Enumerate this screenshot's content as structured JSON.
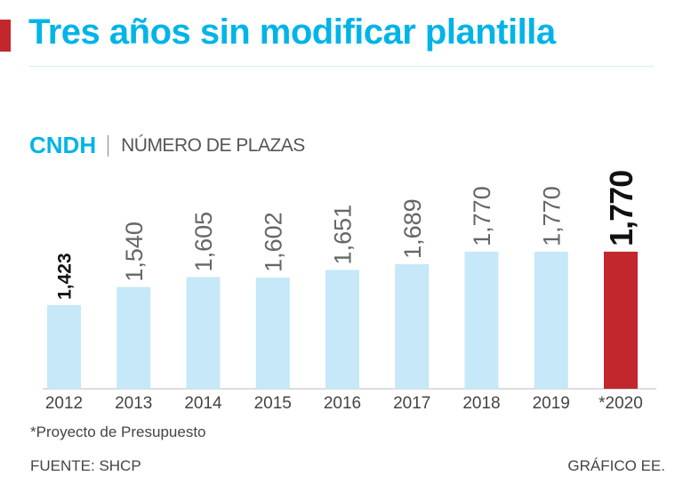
{
  "title": "Tres años sin modificar plantilla",
  "subtitle": {
    "org": "CNDH",
    "unit": "NÚMERO DE PLAZAS"
  },
  "chart_data": {
    "type": "bar",
    "title": "Tres años sin modificar plantilla",
    "ylabel": "NÚMERO DE PLAZAS",
    "categories": [
      "2012",
      "2013",
      "2014",
      "2015",
      "2016",
      "2017",
      "2018",
      "2019",
      "*2020"
    ],
    "values": [
      1423,
      1540,
      1605,
      1602,
      1651,
      1689,
      1770,
      1770,
      1770
    ],
    "value_labels": [
      "1,423",
      "1,540",
      "1,605",
      "1,602",
      "1,651",
      "1,689",
      "1,770",
      "1,770",
      "1,770"
    ],
    "highlight_index": 8,
    "colors": {
      "bar": "#c6e8f8",
      "highlight": "#c1272d",
      "accent": "#00b4e8"
    },
    "grid": false
  },
  "footnote": "*Proyecto de Presupuesto",
  "source": "FUENTE: SHCP",
  "credit": "GRÁFICO EE."
}
